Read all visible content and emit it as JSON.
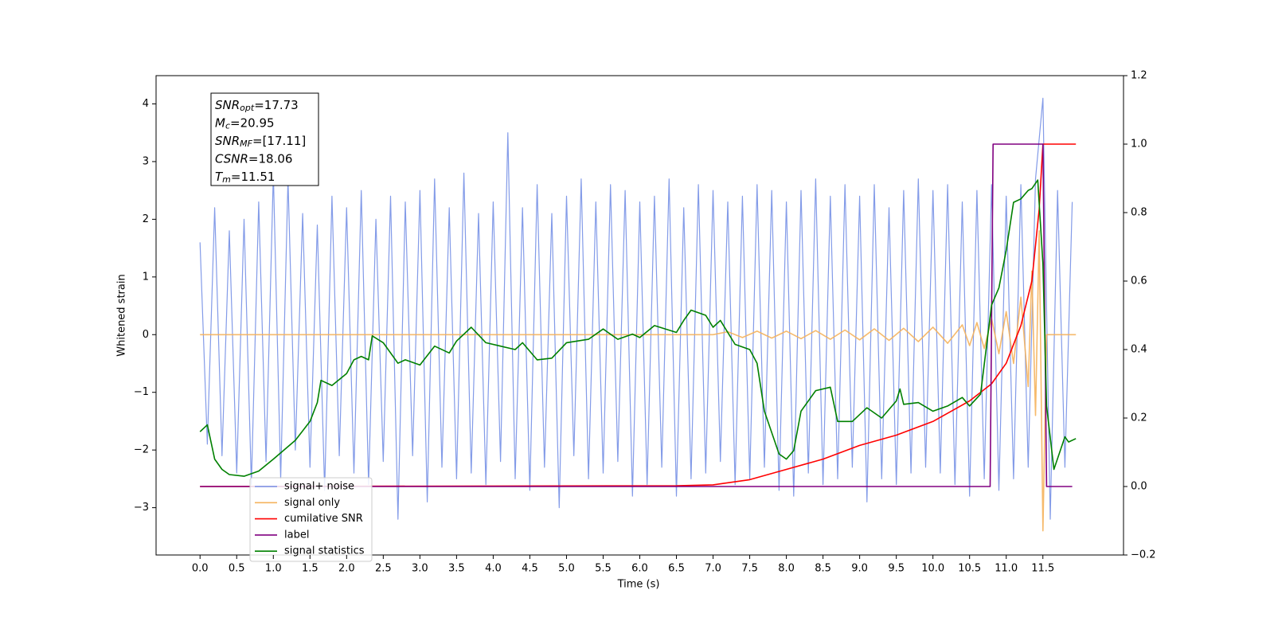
{
  "chart_data": {
    "type": "line",
    "xlabel": "Time (s)",
    "ylabel": "Whitened strain",
    "xlim": [
      -0.6,
      12.6
    ],
    "xticks": [
      {
        "value": 0,
        "label": "0.0"
      },
      0.5,
      {
        "value": 1,
        "label": "1.0"
      },
      1.5,
      {
        "value": 2,
        "label": "2.0"
      },
      2.5,
      {
        "value": 3,
        "label": "3.0"
      },
      3.5,
      {
        "value": 4,
        "label": "4.0"
      },
      4.5,
      {
        "value": 5,
        "label": "5.0"
      },
      5.5,
      {
        "value": 6,
        "label": "6.0"
      },
      6.5,
      {
        "value": 7,
        "label": "7.0"
      },
      7.5,
      {
        "value": 8,
        "label": "8.0"
      },
      8.5,
      {
        "value": 9,
        "label": "9.0"
      },
      9.5,
      {
        "value": 10,
        "label": "10.0"
      },
      10.5,
      {
        "value": 11,
        "label": "11.0"
      },
      11.5
    ],
    "ylim": [
      -3.82,
      4.49
    ],
    "yticks": [
      {
        "value": -3,
        "label": "−3"
      },
      {
        "value": -2,
        "label": "−2"
      },
      {
        "value": -1,
        "label": "−1"
      },
      0,
      1,
      2,
      3,
      4
    ],
    "y2lim": [
      -0.2,
      1.2
    ],
    "y2ticks": [
      {
        "value": -0.2,
        "label": "−0.2"
      },
      {
        "value": 0,
        "label": "0.0"
      },
      0.2,
      0.4,
      0.6,
      0.8,
      {
        "value": 1,
        "label": "1.0"
      },
      1.2
    ],
    "annotation": [
      [
        "SNR",
        "opt",
        "=17.73"
      ],
      [
        "M",
        "c",
        "=20.95"
      ],
      [
        "SNR",
        "MF",
        "=[17.11]"
      ],
      [
        "CSNR",
        "",
        "=18.06"
      ],
      [
        "T",
        "m",
        "=11.51"
      ]
    ],
    "series": [
      {
        "name": "signal+ noise",
        "color": "#7690e6",
        "x": [
          0,
          0.1,
          0.2,
          0.3,
          0.4,
          0.5,
          0.6,
          0.7,
          0.8,
          0.9,
          1,
          1.1,
          1.2,
          1.3,
          1.4,
          1.5,
          1.6,
          1.7,
          1.8,
          1.9,
          2,
          2.1,
          2.2,
          2.3,
          2.4,
          2.5,
          2.6,
          2.7,
          2.8,
          2.9,
          3,
          3.1,
          3.2,
          3.3,
          3.4,
          3.5,
          3.6,
          3.7,
          3.8,
          3.9,
          4,
          4.1,
          4.2,
          4.3,
          4.4,
          4.5,
          4.6,
          4.7,
          4.8,
          4.9,
          5,
          5.1,
          5.2,
          5.3,
          5.4,
          5.5,
          5.6,
          5.7,
          5.8,
          5.9,
          6,
          6.1,
          6.2,
          6.3,
          6.4,
          6.5,
          6.6,
          6.7,
          6.8,
          6.9,
          7,
          7.1,
          7.2,
          7.3,
          7.4,
          7.5,
          7.6,
          7.7,
          7.8,
          7.9,
          8,
          8.1,
          8.2,
          8.3,
          8.4,
          8.5,
          8.6,
          8.7,
          8.8,
          8.9,
          9,
          9.1,
          9.2,
          9.3,
          9.4,
          9.5,
          9.6,
          9.7,
          9.8,
          9.9,
          10,
          10.1,
          10.2,
          10.3,
          10.4,
          10.5,
          10.6,
          10.7,
          10.8,
          10.9,
          11,
          11.1,
          11.2,
          11.3,
          11.4,
          11.5,
          11.6,
          11.7,
          11.8,
          11.9
        ],
        "values": [
          1.6,
          -1.9,
          2.2,
          -2.1,
          1.8,
          -2.4,
          2.0,
          -2.6,
          2.3,
          -2.2,
          2.8,
          -2.5,
          2.7,
          -2.0,
          2.1,
          -2.3,
          1.9,
          -2.7,
          2.4,
          -2.1,
          2.2,
          -2.4,
          2.5,
          -2.6,
          2.0,
          -2.2,
          2.4,
          -3.2,
          2.3,
          -2.1,
          2.5,
          -2.9,
          2.7,
          -2.3,
          2.2,
          -2.5,
          2.8,
          -2.4,
          2.1,
          -2.6,
          2.3,
          -2.2,
          3.5,
          -2.5,
          2.2,
          -2.7,
          2.6,
          -2.3,
          2.1,
          -3.0,
          2.4,
          -2.1,
          2.7,
          -2.5,
          2.3,
          -2.4,
          2.6,
          -2.2,
          2.5,
          -2.8,
          2.3,
          -2.6,
          2.4,
          -2.3,
          2.7,
          -2.8,
          2.2,
          -2.5,
          2.6,
          -2.4,
          2.5,
          -2.2,
          2.3,
          -2.6,
          2.4,
          -2.5,
          2.6,
          -2.3,
          2.5,
          -2.7,
          2.3,
          -2.8,
          2.5,
          -2.4,
          2.7,
          -2.6,
          2.4,
          -2.5,
          2.6,
          -2.3,
          2.4,
          -2.9,
          2.6,
          -2.5,
          2.2,
          -2.6,
          2.5,
          -2.4,
          2.7,
          -2.3,
          2.5,
          -2.4,
          2.6,
          -2.6,
          2.3,
          -2.8,
          2.5,
          -2.5,
          2.6,
          -2.7,
          2.4,
          -2.5,
          2.6,
          -2.3,
          2.7,
          4.1,
          -3.2,
          2.5,
          -2.3,
          2.3
        ]
      },
      {
        "name": "signal only",
        "color": "#f5b35c",
        "x": [
          0,
          7.0,
          7.2,
          7.4,
          7.6,
          7.8,
          8.0,
          8.2,
          8.4,
          8.6,
          8.8,
          9.0,
          9.2,
          9.4,
          9.6,
          9.8,
          10.0,
          10.2,
          10.4,
          10.5,
          10.6,
          10.7,
          10.8,
          10.9,
          11.0,
          11.1,
          11.2,
          11.3,
          11.35,
          11.4,
          11.45,
          11.5,
          11.55,
          11.95
        ],
        "values": [
          0,
          0,
          0.05,
          -0.05,
          0.06,
          -0.06,
          0.06,
          -0.07,
          0.07,
          -0.08,
          0.08,
          -0.09,
          0.1,
          -0.1,
          0.11,
          -0.12,
          0.13,
          -0.15,
          0.17,
          -0.19,
          0.21,
          -0.24,
          0.28,
          -0.33,
          0.4,
          -0.5,
          0.65,
          -0.9,
          1.1,
          -1.4,
          1.8,
          -3.4,
          0,
          0
        ]
      },
      {
        "name": "cumilative SNR",
        "color": "#ff0000",
        "axis": "y2",
        "x": [
          0,
          6.5,
          7.0,
          7.5,
          8.0,
          8.5,
          9.0,
          9.5,
          10.0,
          10.5,
          10.8,
          11.0,
          11.2,
          11.35,
          11.45,
          11.5,
          11.95
        ],
        "values": [
          0,
          0.002,
          0.005,
          0.02,
          0.05,
          0.08,
          0.12,
          0.15,
          0.19,
          0.25,
          0.3,
          0.36,
          0.47,
          0.6,
          0.81,
          1.0,
          1.0
        ]
      },
      {
        "name": "label",
        "color": "#800080",
        "axis": "y2",
        "x": [
          0,
          10.78,
          10.82,
          11.5,
          11.55,
          11.9
        ],
        "values": [
          0,
          0,
          1,
          1,
          0,
          0
        ]
      },
      {
        "name": "signal statistics",
        "color": "#008000",
        "axis": "y2",
        "x": [
          0,
          0.1,
          0.2,
          0.3,
          0.4,
          0.6,
          0.8,
          1.0,
          1.3,
          1.5,
          1.6,
          1.65,
          1.8,
          2.0,
          2.1,
          2.2,
          2.3,
          2.35,
          2.5,
          2.7,
          2.8,
          3.0,
          3.2,
          3.4,
          3.5,
          3.7,
          3.9,
          4.1,
          4.3,
          4.4,
          4.6,
          4.8,
          5.0,
          5.3,
          5.5,
          5.7,
          5.9,
          6.0,
          6.2,
          6.5,
          6.6,
          6.7,
          6.9,
          7.0,
          7.1,
          7.3,
          7.5,
          7.6,
          7.7,
          7.9,
          8.0,
          8.1,
          8.2,
          8.4,
          8.6,
          8.7,
          8.9,
          9.1,
          9.3,
          9.5,
          9.55,
          9.6,
          9.8,
          10.0,
          10.2,
          10.4,
          10.5,
          10.65,
          10.8,
          10.9,
          11.0,
          11.1,
          11.2,
          11.3,
          11.35,
          11.43,
          11.5,
          11.55,
          11.65,
          11.8,
          11.85,
          11.95
        ],
        "values": [
          0.16,
          0.18,
          0.08,
          0.05,
          0.035,
          0.03,
          0.045,
          0.08,
          0.135,
          0.19,
          0.245,
          0.31,
          0.295,
          0.33,
          0.37,
          0.38,
          0.37,
          0.44,
          0.42,
          0.36,
          0.37,
          0.355,
          0.41,
          0.39,
          0.425,
          0.465,
          0.42,
          0.41,
          0.4,
          0.42,
          0.37,
          0.375,
          0.42,
          0.43,
          0.46,
          0.43,
          0.445,
          0.435,
          0.47,
          0.45,
          0.485,
          0.515,
          0.5,
          0.465,
          0.485,
          0.415,
          0.4,
          0.36,
          0.22,
          0.095,
          0.08,
          0.105,
          0.22,
          0.28,
          0.29,
          0.19,
          0.19,
          0.23,
          0.2,
          0.25,
          0.285,
          0.24,
          0.245,
          0.22,
          0.235,
          0.26,
          0.235,
          0.27,
          0.53,
          0.58,
          0.69,
          0.83,
          0.84,
          0.865,
          0.87,
          0.895,
          0.65,
          0.235,
          0.05,
          0.145,
          0.13,
          0.14
        ]
      }
    ]
  }
}
